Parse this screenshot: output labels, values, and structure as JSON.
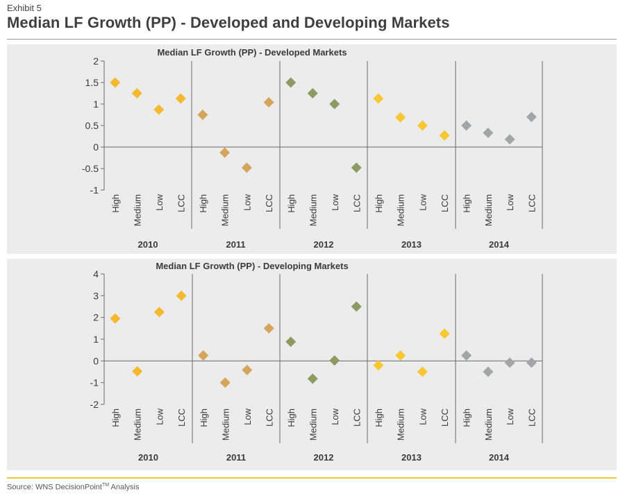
{
  "header": {
    "exhibit": "Exhibit 5",
    "title": "Median LF Growth (PP) - Developed and Developing Markets"
  },
  "footer": {
    "source_prefix": "Source: WNS DecisionPoint",
    "source_tm": "TM",
    "source_suffix": " Analysis"
  },
  "colors": {
    "2010": "#f5b82e",
    "2011": "#d4a55a",
    "2012": "#8e9a62",
    "2013": "#f7c832",
    "2014": "#a3a5a9",
    "panel_bg": "#ececec",
    "accent_rule": "#f4c430"
  },
  "chart_data": [
    {
      "type": "scatter",
      "title": "Median LF Growth (PP) - Developed Markets",
      "groups": [
        "2010",
        "2011",
        "2012",
        "2013",
        "2014"
      ],
      "categories": [
        "High",
        "Medium",
        "Low",
        "LCC"
      ],
      "ylim": [
        -1,
        2
      ],
      "yticks": [
        2,
        1.5,
        1,
        0.5,
        0,
        -0.5,
        -1
      ],
      "ytick_labels": [
        "2",
        "1.5",
        "1",
        "0.5",
        "0",
        "-0.5",
        "-1"
      ],
      "series": [
        {
          "name": "2010",
          "values": [
            1.5,
            1.25,
            0.87,
            1.13
          ]
        },
        {
          "name": "2011",
          "values": [
            0.75,
            -0.13,
            -0.48,
            1.04
          ]
        },
        {
          "name": "2012",
          "values": [
            1.5,
            1.25,
            1.0,
            -0.48
          ]
        },
        {
          "name": "2013",
          "values": [
            1.13,
            0.69,
            0.5,
            0.27
          ]
        },
        {
          "name": "2014",
          "values": [
            0.5,
            0.33,
            0.18,
            0.7
          ]
        }
      ]
    },
    {
      "type": "scatter",
      "title": "Median LF Growth (PP) - Developing Markets",
      "groups": [
        "2010",
        "2011",
        "2012",
        "2013",
        "2014"
      ],
      "categories": [
        "High",
        "Medium",
        "Low",
        "LCC"
      ],
      "ylim": [
        -2,
        4
      ],
      "yticks": [
        4,
        3,
        2,
        1,
        0,
        -1,
        -2
      ],
      "ytick_labels": [
        "4",
        "3",
        "2",
        "1",
        "0",
        "-1",
        "-2"
      ],
      "series": [
        {
          "name": "2010",
          "values": [
            1.95,
            -0.48,
            2.25,
            3.0
          ]
        },
        {
          "name": "2011",
          "values": [
            0.25,
            -1.0,
            -0.42,
            1.5
          ]
        },
        {
          "name": "2012",
          "values": [
            0.88,
            -0.82,
            0.02,
            2.5
          ]
        },
        {
          "name": "2013",
          "values": [
            -0.2,
            0.25,
            -0.5,
            1.25
          ]
        },
        {
          "name": "2014",
          "values": [
            0.25,
            -0.5,
            -0.08,
            -0.08
          ]
        }
      ]
    }
  ]
}
